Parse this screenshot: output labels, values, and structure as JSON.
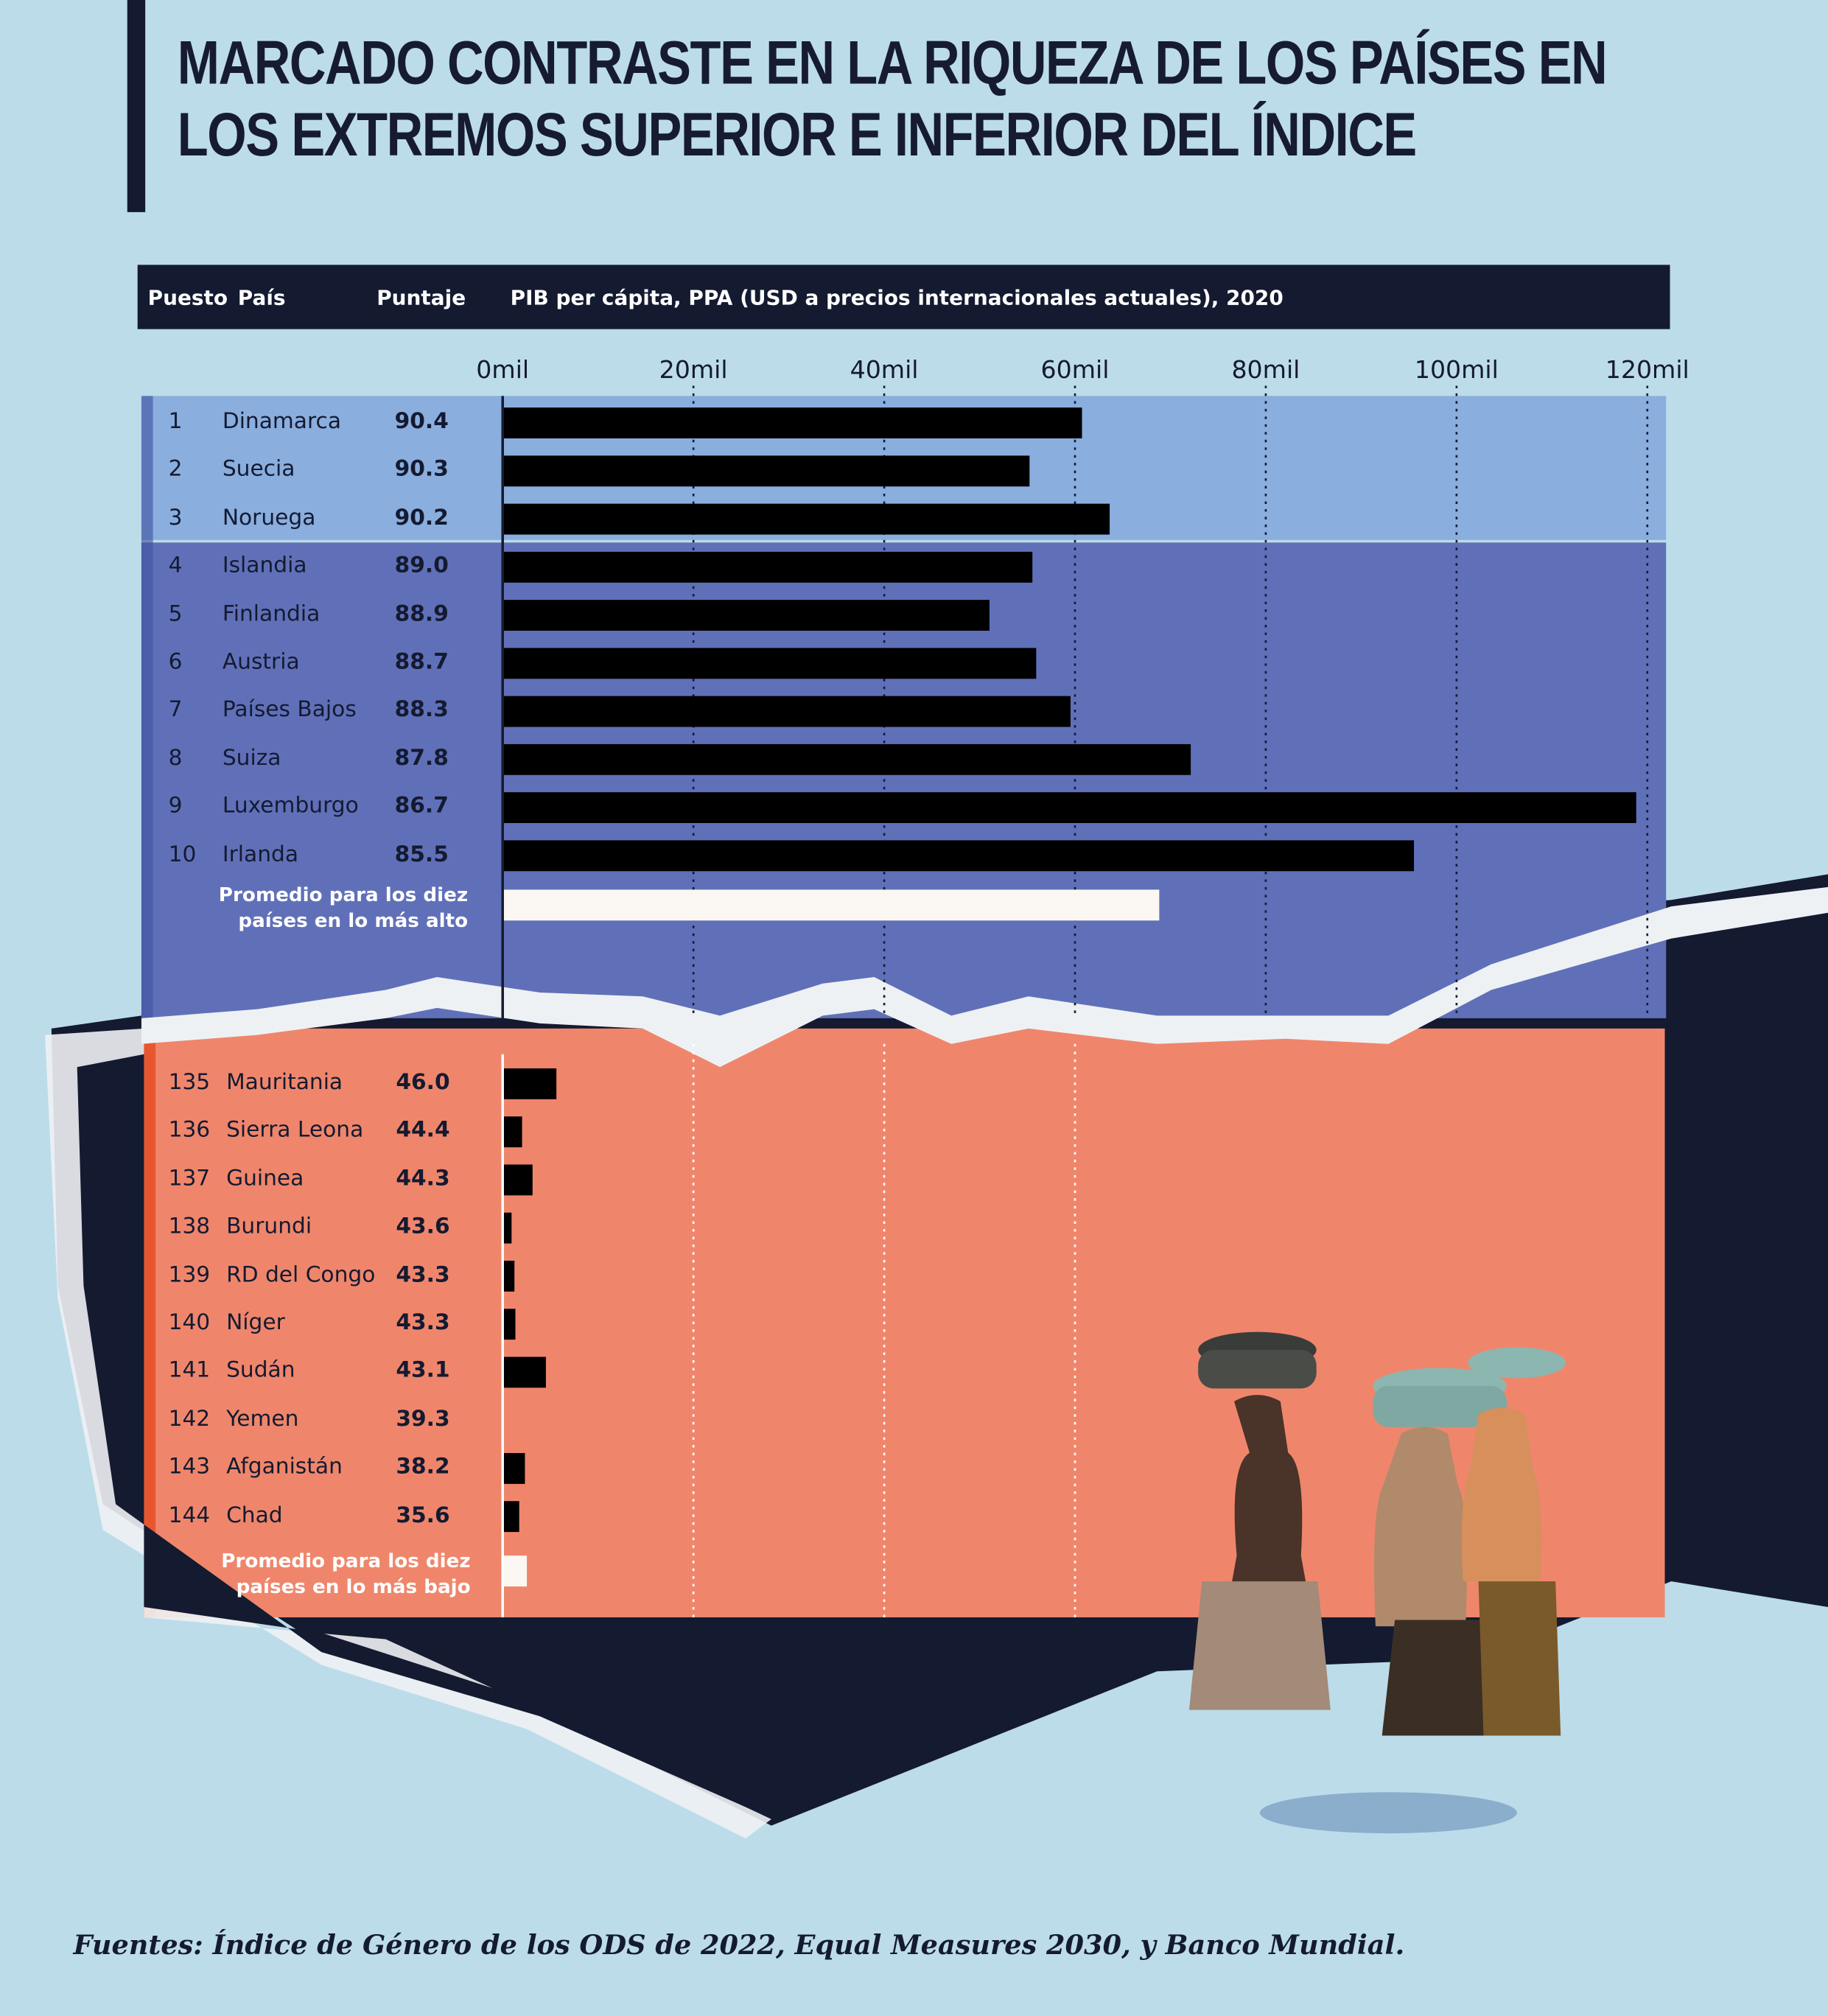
{
  "title": {
    "line1": "MARCADO CONTRASTE EN LA RIQUEZA DE LOS PAÍSES EN",
    "line2": "LOS EXTREMOS SUPERIOR E INFERIOR DEL ÍNDICE"
  },
  "header": {
    "rank": "Puesto",
    "country": "País",
    "score": "Puntaje",
    "gdp": "PIB per cápita, PPA (USD a precios internacionales actuales), 2020"
  },
  "colors": {
    "top3_panel": "#8aaede",
    "top10_panel": "#6070b8",
    "bottom_panel": "#ef866c",
    "navy": "#141a30",
    "bar": "#000000",
    "avg_bar": "#fbf8f4"
  },
  "chart_data": [
    {
      "type": "bar",
      "orientation": "horizontal",
      "xlim": [
        0,
        120
      ],
      "xticks": [
        "0mil",
        "20mil",
        "40mil",
        "60mil",
        "80mil",
        "100mil",
        "120mil"
      ],
      "xtick_values": [
        0,
        20,
        40,
        60,
        80,
        100,
        120
      ],
      "grid": true,
      "rows": [
        {
          "rank": "1",
          "country": "Dinamarca",
          "score": "90.4",
          "gdp": 60.6
        },
        {
          "rank": "2",
          "country": "Suecia",
          "score": "90.3",
          "gdp": 55.1
        },
        {
          "rank": "3",
          "country": "Noruega",
          "score": "90.2",
          "gdp": 63.5
        },
        {
          "rank": "4",
          "country": "Islandia",
          "score": "89.0",
          "gdp": 55.4
        },
        {
          "rank": "5",
          "country": "Finlandia",
          "score": "88.9",
          "gdp": 50.9
        },
        {
          "rank": "6",
          "country": "Austria",
          "score": "88.7",
          "gdp": 55.8
        },
        {
          "rank": "7",
          "country": "Países Bajos",
          "score": "88.3",
          "gdp": 59.4
        },
        {
          "rank": "8",
          "country": "Suiza",
          "score": "87.8",
          "gdp": 72.0
        },
        {
          "rank": "9",
          "country": "Luxemburgo",
          "score": "86.7",
          "gdp": 118.7
        },
        {
          "rank": "10",
          "country": "Irlanda",
          "score": "85.5",
          "gdp": 95.4
        }
      ],
      "average": {
        "label1": "Promedio para los diez",
        "label2": "países en lo más alto",
        "gdp": 68.7
      }
    },
    {
      "type": "bar",
      "orientation": "horizontal",
      "xlim": [
        0,
        120
      ],
      "xticks": [
        "0mil",
        "20mil",
        "40mil",
        "60mil"
      ],
      "xtick_values": [
        0,
        20,
        40,
        60
      ],
      "grid": true,
      "rows": [
        {
          "rank": "135",
          "country": "Mauritania",
          "score": "46.0",
          "gdp": 5.5
        },
        {
          "rank": "136",
          "country": "Sierra Leona",
          "score": "44.4",
          "gdp": 1.9
        },
        {
          "rank": "137",
          "country": "Guinea",
          "score": "44.3",
          "gdp": 3.0
        },
        {
          "rank": "138",
          "country": "Burundi",
          "score": "43.6",
          "gdp": 0.8
        },
        {
          "rank": "139",
          "country": "RD del Congo",
          "score": "43.3",
          "gdp": 1.1
        },
        {
          "rank": "140",
          "country": "Níger",
          "score": "43.3",
          "gdp": 1.2
        },
        {
          "rank": "141",
          "country": "Sudán",
          "score": "43.1",
          "gdp": 4.4
        },
        {
          "rank": "142",
          "country": "Yemen",
          "score": "39.3",
          "gdp": null
        },
        {
          "rank": "143",
          "country": "Afganistán",
          "score": "38.2",
          "gdp": 2.2
        },
        {
          "rank": "144",
          "country": "Chad",
          "score": "35.6",
          "gdp": 1.6
        }
      ],
      "average": {
        "label1": "Promedio para los diez",
        "label2": "países en lo más bajo",
        "gdp": 2.4
      }
    }
  ],
  "source": "Fuentes: Índice de Género de los ODS de 2022, Equal Measures 2030, y Banco Mundial."
}
